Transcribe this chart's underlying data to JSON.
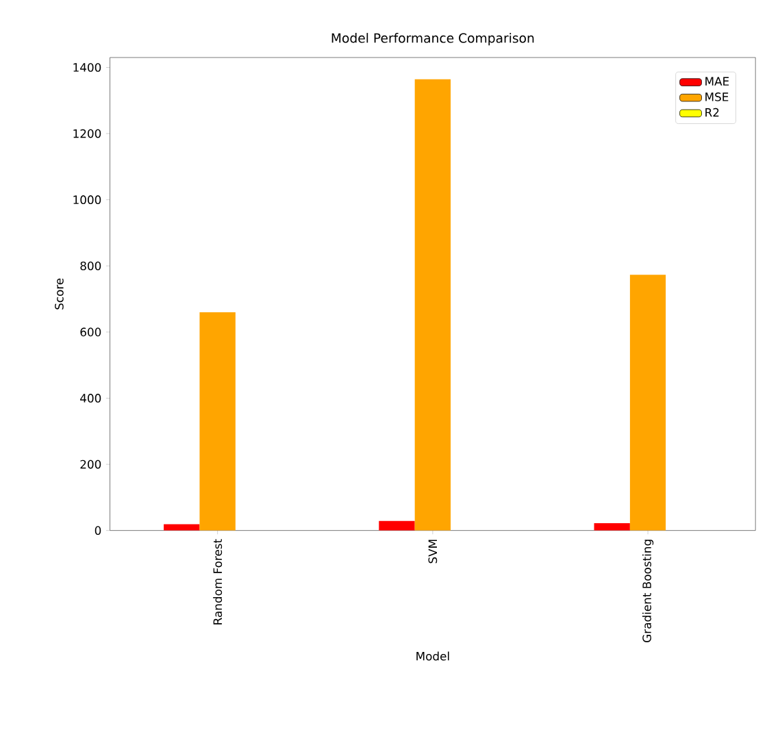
{
  "chart_data": {
    "type": "bar",
    "title": "Model Performance Comparison",
    "xlabel": "Model",
    "ylabel": "Score",
    "categories": [
      "Random Forest",
      "SVM",
      "Gradient Boosting"
    ],
    "series": [
      {
        "name": "MAE",
        "color": "#ff0000",
        "values": [
          19,
          29,
          22
        ]
      },
      {
        "name": "MSE",
        "color": "#ffa500",
        "values": [
          660,
          1364,
          773
        ]
      },
      {
        "name": "R2",
        "color": "#ffff00",
        "values": [
          null,
          null,
          null
        ]
      }
    ],
    "ylim": [
      0,
      1430
    ],
    "yticks": [
      0,
      200,
      400,
      600,
      800,
      1000,
      1200,
      1400
    ],
    "legend": "top right",
    "grid": false
  }
}
